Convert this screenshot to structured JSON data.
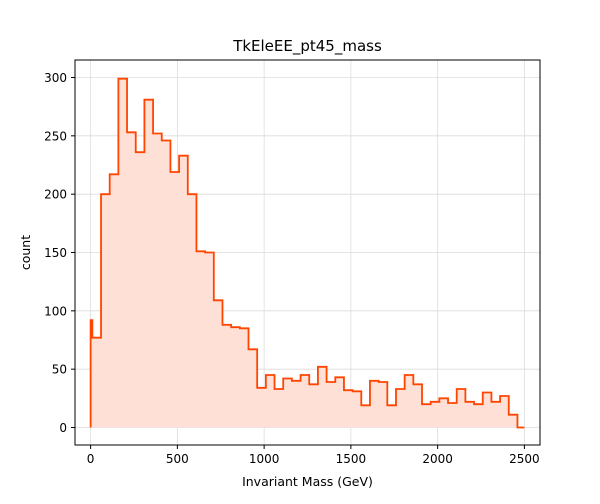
{
  "chart_data": {
    "type": "histogram",
    "title": "TkEleEE_pt45_mass",
    "xlabel": "Invariant Mass (GeV)",
    "ylabel": "count",
    "xlim": [
      -90,
      2590
    ],
    "ylim": [
      -15,
      315
    ],
    "grid": true,
    "xticks": [
      0,
      500,
      1000,
      1500,
      2000,
      2500
    ],
    "yticks": [
      0,
      50,
      100,
      150,
      200,
      250,
      300
    ],
    "line_color": "#ff4500",
    "fill_color": "#ffe0d6",
    "bin_edges": [
      0,
      10,
      60,
      110,
      160,
      210,
      260,
      310,
      360,
      410,
      460,
      510,
      560,
      610,
      660,
      710,
      760,
      810,
      860,
      910,
      960,
      1010,
      1060,
      1110,
      1160,
      1210,
      1260,
      1310,
      1360,
      1410,
      1460,
      1510,
      1560,
      1610,
      1660,
      1710,
      1760,
      1810,
      1860,
      1910,
      1960,
      2010,
      2060,
      2110,
      2160,
      2210,
      2260,
      2310,
      2360,
      2410,
      2460,
      2500
    ],
    "counts": [
      92,
      77,
      200,
      217,
      299,
      253,
      236,
      281,
      252,
      246,
      219,
      233,
      200,
      151,
      150,
      109,
      88,
      86,
      85,
      67,
      34,
      45,
      33,
      42,
      40,
      45,
      37,
      52,
      39,
      43,
      32,
      31,
      19,
      40,
      39,
      19,
      33,
      45,
      37,
      20,
      22,
      25,
      21,
      33,
      22,
      20,
      30,
      22,
      27,
      11,
      0
    ]
  }
}
